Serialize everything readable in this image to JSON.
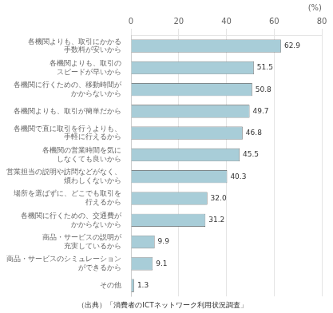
{
  "chart_data": {
    "type": "bar",
    "orientation": "horizontal",
    "categories": [
      "各機関よりも、取引にかかる\n手数料が安いから",
      "各機関よりも、取引の\nスピードが早いから",
      "各機関に行くための、移動時間が\nかからないから",
      "各機関よりも、取引が簡単だから",
      "各機関で直に取引を行うよりも、\n手軽に行えるから",
      "各機関の営業時間を気に\nしなくても良いから",
      "営業担当の説明や訪問などがなく、\n煩わしくないから",
      "場所を選ばずに、どこでも取引を\n行えるから",
      "各機関に行くための、交通費が\nかからないから",
      "商品・サービスの説明が\n充実しているから",
      "商品・サービスのシミュレーション\nができるから",
      "その他"
    ],
    "values": [
      62.9,
      51.5,
      50.8,
      49.7,
      46.8,
      45.5,
      40.3,
      32.0,
      31.2,
      9.9,
      9.1,
      1.3
    ],
    "value_labels": [
      "62.9",
      "51.5",
      "50.8",
      "49.7",
      "46.8",
      "45.5",
      "40.3",
      "32.0",
      "31.2",
      "9.9",
      "9.1",
      "1.3"
    ],
    "data_labels": true,
    "color": "#a8cdd8",
    "xlabel": "(%)",
    "xlim": [
      0,
      80
    ],
    "xticks": [
      0,
      20,
      40,
      60,
      80
    ],
    "grid": true,
    "annotations": [
      "（出典）「消費者のICTネットワーク利用状況調査」"
    ]
  }
}
